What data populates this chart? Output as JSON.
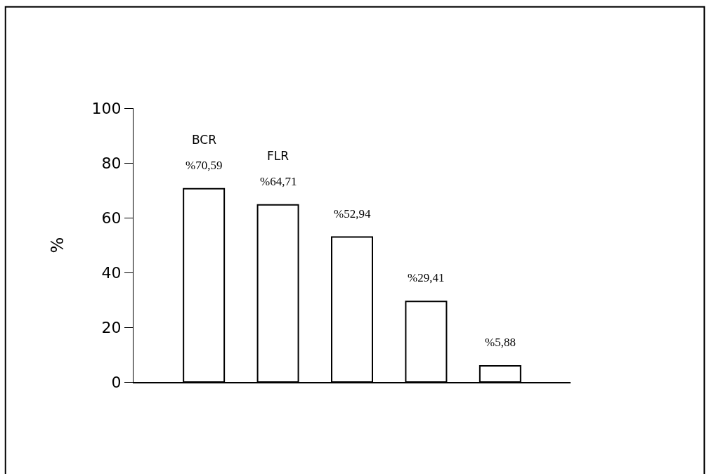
{
  "chart_data": {
    "type": "bar",
    "ylabel": "%",
    "categories": [
      "BCR",
      "FLR",
      null,
      null,
      null
    ],
    "values": [
      70.59,
      64.71,
      52.94,
      29.41,
      5.88
    ],
    "value_labels": [
      "%70,59",
      "%64,71",
      "%52,94",
      "%29,41",
      "%5,88"
    ],
    "color": "#ffffff",
    "ylim": [
      0,
      100
    ],
    "yticks": [
      0,
      20,
      40,
      60,
      80,
      100
    ]
  }
}
